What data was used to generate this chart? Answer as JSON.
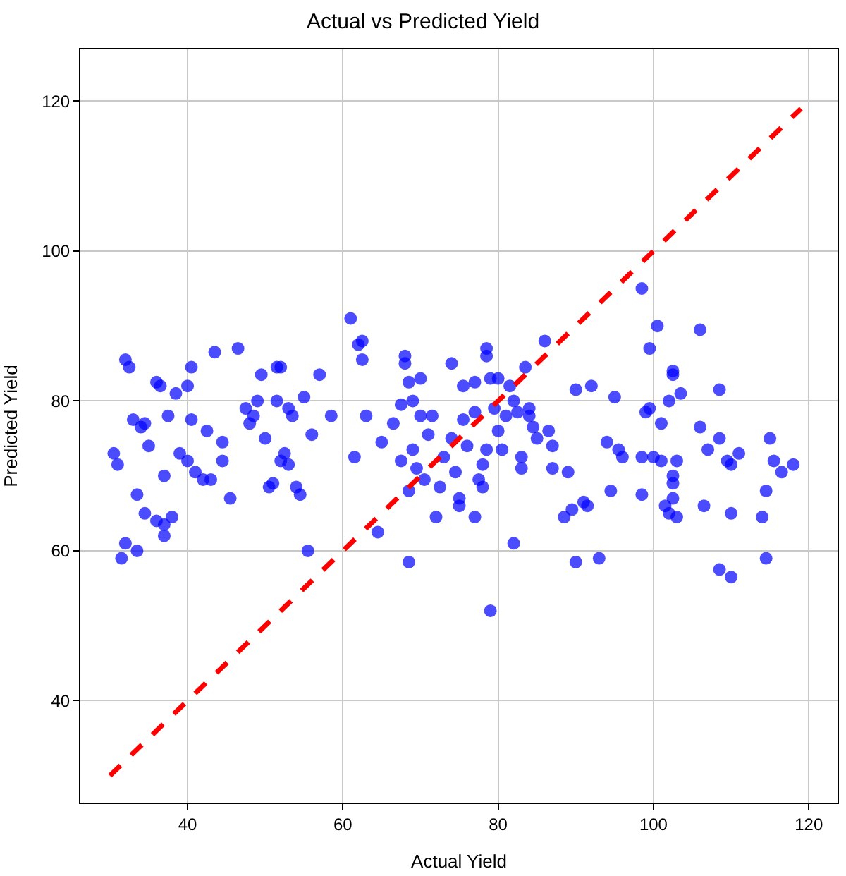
{
  "chart_data": {
    "type": "scatter",
    "title": "Actual vs Predicted Yield",
    "xlabel": "Actual Yield",
    "ylabel": "Predicted Yield",
    "xlim": [
      26.2,
      123.7
    ],
    "ylim": [
      26.4,
      126.9
    ],
    "xticks": [
      40,
      60,
      80,
      100,
      120
    ],
    "yticks": [
      40,
      60,
      80,
      100,
      120
    ],
    "grid": true,
    "marker": "circle",
    "series": [
      {
        "color": "#0000ff",
        "x": [
          30.5,
          31,
          31.5,
          32,
          32.5,
          32,
          33,
          33.5,
          33.5,
          34,
          34.5,
          34.5,
          35,
          36,
          36.5,
          36,
          37,
          37,
          37.5,
          37,
          38,
          38.5,
          39,
          40,
          40,
          40.5,
          40.5,
          41,
          42,
          42.5,
          43,
          43.5,
          44.5,
          44.5,
          45.5,
          46.5,
          47.5,
          48,
          48.5,
          49,
          49.5,
          50,
          50.5,
          51,
          51.5,
          52,
          51.5,
          52,
          52.5,
          53,
          53,
          53.5,
          54,
          54.5,
          55,
          55.5,
          56,
          57,
          58.5,
          61,
          61.5,
          62,
          62.5,
          62.5,
          63,
          64.5,
          65,
          66.5,
          67.5,
          67.5,
          68,
          68,
          68.5,
          68.5,
          68.5,
          69,
          69,
          69.5,
          70,
          70,
          70.5,
          71,
          71.5,
          72,
          72.5,
          73,
          74,
          74,
          74.5,
          75,
          75,
          75.5,
          75.5,
          76,
          77,
          77,
          77,
          77.5,
          78,
          78,
          78.5,
          78.5,
          78.5,
          79,
          79,
          79.5,
          80,
          80,
          80.5,
          81,
          81.5,
          82,
          82,
          82.5,
          83,
          83,
          83.5,
          84,
          84,
          84.5,
          85,
          86,
          86.5,
          87,
          87,
          88.5,
          89,
          89.5,
          90,
          90,
          91,
          91.5,
          92,
          93,
          94,
          94.5,
          95,
          95.5,
          96,
          98.5,
          98.5,
          98.5,
          99,
          99.5,
          99.5,
          100,
          100.5,
          101,
          101,
          101.5,
          102,
          102,
          102.5,
          102.5,
          102.5,
          102.5,
          102.5,
          103,
          103,
          103.5,
          106,
          106,
          106.5,
          107,
          108.5,
          108.5,
          108.5,
          109.5,
          110,
          110,
          110,
          111,
          114,
          114.5,
          114.5,
          115,
          115.5,
          116.5,
          118
        ],
        "values": [
          73,
          71.5,
          59,
          85.5,
          84.5,
          61,
          77.5,
          67.5,
          60,
          76.5,
          77,
          65,
          74,
          82.5,
          82,
          64,
          63.5,
          62,
          78,
          70,
          64.5,
          81,
          73,
          72,
          82,
          84.5,
          77.5,
          70.5,
          69.5,
          76,
          69.5,
          86.5,
          74.5,
          72,
          67,
          87,
          79,
          77,
          78,
          80,
          83.5,
          75,
          68.5,
          69,
          84.5,
          84.5,
          80,
          72,
          73,
          71.5,
          79,
          78,
          68.5,
          67.5,
          80.5,
          60,
          75.5,
          83.5,
          78,
          91,
          72.5,
          87.5,
          88,
          85.5,
          78,
          62.5,
          74.5,
          77,
          79.5,
          72,
          86,
          85,
          82.5,
          68,
          58.5,
          80,
          73.5,
          71,
          83,
          78,
          69.5,
          75.5,
          78,
          64.5,
          68.5,
          72.5,
          85,
          75,
          70.5,
          67,
          66,
          82,
          77.5,
          74,
          82.5,
          78.5,
          64.5,
          69.5,
          71.5,
          68.5,
          73.5,
          86,
          87,
          83,
          52,
          79,
          83,
          76,
          73.5,
          78,
          82,
          61,
          80,
          78.5,
          72.5,
          71,
          84.5,
          79,
          78,
          76.5,
          75,
          88,
          76,
          74,
          71,
          64.5,
          70.5,
          65.5,
          81.5,
          58.5,
          66.5,
          66,
          82,
          59,
          74.5,
          68,
          80.5,
          73.5,
          72.5,
          95,
          72.5,
          67.5,
          78.5,
          79,
          87,
          72.5,
          90,
          77,
          72,
          66,
          65,
          80,
          84,
          83.5,
          69,
          70,
          67,
          72,
          64.5,
          81,
          89.5,
          76.5,
          66,
          73.5,
          57.5,
          81.5,
          75,
          72,
          71.5,
          65,
          56.5,
          73,
          64.5,
          68,
          59,
          75,
          72,
          70.5,
          71.5
        ]
      },
      {
        "type": "line",
        "color": "#ff0000",
        "line_style": "dashed",
        "marker": "none",
        "x": [
          30,
          119
        ],
        "values": [
          30,
          119
        ]
      }
    ]
  }
}
